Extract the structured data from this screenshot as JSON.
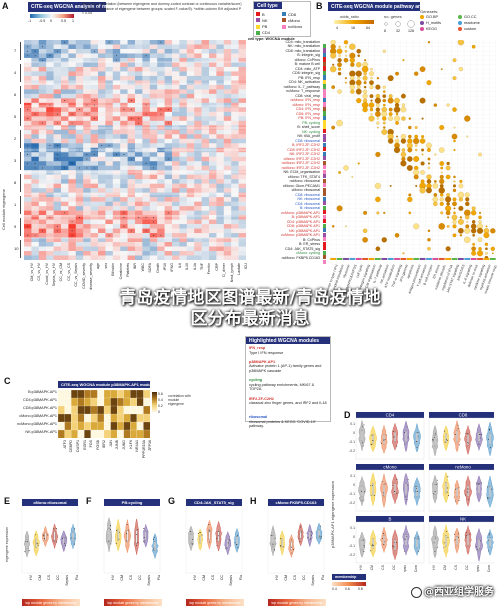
{
  "panels": {
    "A": {
      "letter": "A",
      "header": "CITE-seq WGCNA analysis of major cell subsets",
      "scale_label": "Spearman correlation (between eigengene and dummy-coded contrast or continuous variable/score) or ANOVA (variance of eigengene between groups; scaled F-value/5). *within-column BH adjusted P < 0.05",
      "scale_ticks": [
        "-1",
        "-0.5",
        "0",
        "0.5",
        "1"
      ],
      "cell_type_legend_title": "Cell type",
      "cell_types": [
        {
          "name": "B",
          "color": "#e41a1c"
        },
        {
          "name": "NK",
          "color": "#984ea3"
        },
        {
          "name": "PB",
          "color": "#ffd92f"
        },
        {
          "name": "CD4",
          "color": "#4daf4a"
        },
        {
          "name": "CD8",
          "color": "#377eb8"
        },
        {
          "name": "cMono",
          "color": "#a65628"
        },
        {
          "name": "ncMono",
          "color": "#f781bf"
        }
      ],
      "row_group_label": "Cell module eigengene",
      "row_groups": [
        "7",
        "4",
        "6",
        "5",
        "2",
        "3",
        "8",
        "1",
        "9",
        "10"
      ],
      "column_labels": [
        "CM_vs_HV",
        "CS_vs_HV",
        "Covid_vs_HV",
        "Sepsis_vs_HV",
        "CC_vs_CM",
        "CC_vs_CS",
        "CC_vs_Sepsis",
        "COVID_severity",
        "disease_severity",
        "age",
        "sex",
        "Bilirubin",
        "Creatinine",
        "Platelets",
        "INR",
        "WBC",
        "SOFA",
        "Death",
        "IP10",
        "IFNG",
        "IL6",
        "IL10",
        "IL1b",
        "TNF",
        "Ferritin",
        "CRP",
        "D_dimer",
        "Neut_lymph",
        "Lactate",
        "ICU"
      ]
    },
    "modules": {
      "title": "cell type: WGCNA module",
      "rows": [
        {
          "label": "CD4: mito_translation",
          "style": "normal"
        },
        {
          "label": "NK: mito_translation",
          "style": "normal"
        },
        {
          "label": "CD8: mito_translation",
          "style": "normal"
        },
        {
          "label": "B: integrin_sig",
          "style": "normal"
        },
        {
          "label": "cMono: CxPhos",
          "style": "normal"
        },
        {
          "label": "B: mature B cell",
          "style": "normal"
        },
        {
          "label": "CD4: mito_ATP",
          "style": "normal"
        },
        {
          "label": "CD8: integrin_sig",
          "style": "normal"
        },
        {
          "label": "PB: IFN_resp",
          "style": "normal"
        },
        {
          "label": "CD4: NK_activation",
          "style": "normal"
        },
        {
          "label": "ncMono: IL-7_pathway",
          "style": "normal"
        },
        {
          "label": "ncMono: T_response",
          "style": "normal"
        },
        {
          "label": "CD8: viral_resp",
          "style": "normal"
        },
        {
          "label": "ncMono: IFN_resp",
          "style": "red"
        },
        {
          "label": "cMono: IFN_resp",
          "style": "red"
        },
        {
          "label": "CD4: IFN_resp",
          "style": "red"
        },
        {
          "label": "CD8: IFN_resp",
          "style": "red"
        },
        {
          "label": "PB: IFN_resp",
          "style": "red"
        },
        {
          "label": "PB: cycling",
          "style": "green"
        },
        {
          "label": "B: shell_score",
          "style": "normal"
        },
        {
          "label": "NK: cycling",
          "style": "green"
        },
        {
          "label": "NK: tBA_prolif",
          "style": "normal"
        },
        {
          "label": "CD8: ribosomal",
          "style": "blue"
        },
        {
          "label": "B: IRF2.ZF-C2H2",
          "style": "red"
        },
        {
          "label": "CD8: IRF2.ZF-C2H2",
          "style": "red"
        },
        {
          "label": "NK: IRF2.ZF-C2H2",
          "style": "red"
        },
        {
          "label": "cMono: IRF2.ZF-C2H2",
          "style": "red"
        },
        {
          "label": "ncMono: IRF2.ZF-C2H2",
          "style": "red"
        },
        {
          "label": "ncMono: IRF2.ZF-C2H2",
          "style": "red"
        },
        {
          "label": "NK: ECM_organisation",
          "style": "normal"
        },
        {
          "label": "cMono: TFK_STAT4",
          "style": "normal"
        },
        {
          "label": "ncMono: ribosomal",
          "style": "normal"
        },
        {
          "label": "cMono: Glum.PECAM1",
          "style": "normal"
        },
        {
          "label": "cMono: ribosomal",
          "style": "normal"
        },
        {
          "label": "CD8: ribosomal",
          "style": "blue"
        },
        {
          "label": "NK: ribosomal",
          "style": "blue"
        },
        {
          "label": "CD4: ribosomal",
          "style": "blue"
        },
        {
          "label": "B: ribosomal",
          "style": "blue"
        },
        {
          "label": "ncMono: p38MAPK.AP1",
          "style": "red"
        },
        {
          "label": "B: p38MAPK.AP1",
          "style": "red"
        },
        {
          "label": "CD4: p38MAPK.AP1",
          "style": "red"
        },
        {
          "label": "CD8: p38MAPK.AP1",
          "style": "red"
        },
        {
          "label": "NK: p38MAPK.AP1",
          "style": "red"
        },
        {
          "label": "ncMono: p38MAPK.AP1",
          "style": "red"
        },
        {
          "label": "B: CxPhos",
          "style": "normal"
        },
        {
          "label": "B: ER_stress",
          "style": "normal"
        },
        {
          "label": "CD4: JAK_STAT5_sig",
          "style": "normal"
        },
        {
          "label": "cMono: cycling",
          "style": "green"
        },
        {
          "label": "ncMono: FKBP5.CD163",
          "style": "normal"
        }
      ]
    },
    "B": {
      "letter": "B",
      "header": "CITE-seq WGCNA module pathway analysis",
      "size_legend_title": "odds_ratio",
      "size_ticks": [
        "4",
        "16",
        "64"
      ],
      "genes_legend_title": "no. genes",
      "genes_ticks": [
        "8",
        "32",
        "128"
      ],
      "db_legend_title": "Genesets:",
      "databases": [
        {
          "name": "GO.BP",
          "color": "#f0a500"
        },
        {
          "name": "GO.CC",
          "color": "#5ab54b"
        },
        {
          "name": "H_motifs",
          "color": "#7c4ba0"
        },
        {
          "name": "reactome",
          "color": "#4a9fd8"
        },
        {
          "name": "KEGG",
          "color": "#d94e9a"
        },
        {
          "name": "custom",
          "color": "#e4572e"
        }
      ],
      "pathway_labels": [
        "response to type I IFN",
        "mitochondrial translation",
        "ribosome",
        "p38MAPK/JUN/FOS",
        "cell cycle",
        "integrin signaling",
        "ECM organisation",
        "IL-7 pathway",
        "NK activation",
        "ATP metabolism",
        "TNF-a signaling",
        "IFN-gamma",
        "apoptosis",
        "antigen presentation",
        "T cell activation",
        "B cell receptor",
        "ER stress",
        "oxidative phosph.",
        "regulation of IFNA",
        "JAK-STAT signaling",
        "JAK/STAT5",
        "IL-6 signaling",
        "defense to virus",
        "cytokine signaling",
        "myeloid activation",
        "innate immune resp."
      ]
    },
    "highlighted": {
      "title": "Highlighted WGCNA modules",
      "items": [
        {
          "name": "IFN_resp",
          "desc": "Type I IFN response",
          "color": "#d0312d"
        },
        {
          "name": "p38MAPK.AP1",
          "desc": "Activator protein 1 (AP-1) family genes and p38MAPK cascade",
          "color": "#d0312d"
        },
        {
          "name": "cycling",
          "desc": "cycling pathway enrichments, MKI67 & TOP2A",
          "color": "#2e8b3d"
        },
        {
          "name": "IRF2.ZF-C2H2",
          "desc": "classical zinc finger genes, and IRF2 and IL18",
          "color": "#d0312d"
        },
        {
          "name": "ribosomal",
          "desc": "ribosomal proteins & KEGG 'COVID-19' pathway.",
          "color": "#2857c5"
        }
      ]
    },
    "C": {
      "letter": "C",
      "header": "CITE-seq WGCNA module p38MAPK.AP1 module",
      "rows": [
        "B:p38MAPK.AP1",
        "CD4:p38MAPK.AP1",
        "CD8:p38MAPK.AP1",
        "cMono:p38MAPK.AP1",
        "ncMono:p38MAPK.AP1",
        "NK:p38MAPK.AP1"
      ],
      "cols": [
        "ATF3",
        "CEBPD",
        "DUSP1",
        "EGR1",
        "FOS",
        "FOSB",
        "IER2",
        "JUN",
        "JUNB",
        "JUND",
        "KLF6",
        "NR4A1",
        "PPP1R15A",
        "ZFP36"
      ],
      "legend_title": "correlation with module eigengene",
      "legend_ticks": [
        "0.6",
        "0.4",
        "0.2",
        "0"
      ]
    },
    "D": {
      "letter": "D",
      "y_label": "p38MAPK.AP1 eigengene expression",
      "facets": [
        "CD4",
        "CD8",
        "cMono",
        "ncMono",
        "B",
        "NK"
      ],
      "groups": [
        "HV",
        "CM",
        "CS",
        "CC",
        "Sepsis",
        "CCom"
      ],
      "y_ticks": [
        "0.1",
        "0",
        "-0.1",
        "-0.2"
      ]
    },
    "E": {
      "letter": "E",
      "header": "cMono:ribosomal",
      "y_label": "eigengene expression"
    },
    "F": {
      "letter": "F",
      "header": "PB:cycling"
    },
    "G": {
      "letter": "G",
      "header": "CD4:JAK_STAT5_sig"
    },
    "H": {
      "letter": "H",
      "header": "cMono:FKBP5.CD163"
    },
    "violin_groups": [
      "HV",
      "CM",
      "CS",
      "CC",
      "Sepsis",
      "Flu"
    ],
    "bottom_bar_label": "top module genes by membership",
    "membership_legend": "membership",
    "membership_ticks": [
      "0.4",
      "0.6",
      "0.8"
    ]
  },
  "overlay": {
    "line1": "青岛疫情地区图谱最新/青岛疫情地",
    "line2": "区分布最新消息",
    "watermark": "@西亚组学服务"
  },
  "colors": {
    "header_navy": "#25307a",
    "pos": "#d7301f",
    "neg": "#2166ac",
    "dot": "#f0a500",
    "grid": "#e6e6e6"
  }
}
